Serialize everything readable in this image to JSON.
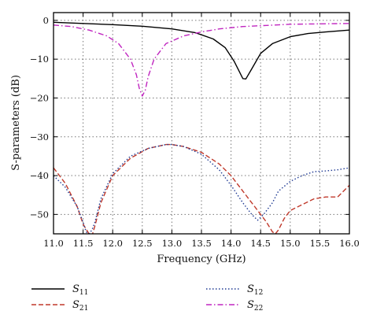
{
  "chart_data": {
    "type": "line",
    "title": "",
    "xlabel": "Frequency (GHz)",
    "ylabel": "S-parameters (dB)",
    "xlim": [
      11.0,
      16.0
    ],
    "ylim": [
      -55,
      2
    ],
    "xticks": [
      11.0,
      11.5,
      12.0,
      12.5,
      13.0,
      13.5,
      14.0,
      14.5,
      15.0,
      15.5,
      16.0
    ],
    "xtick_labels": [
      "11.0",
      "11.5",
      "12.0",
      "12.5",
      "13.0",
      "13.5",
      "14.0",
      "14.5",
      "15.0",
      "15.5",
      "16.0"
    ],
    "yticks": [
      0,
      -10,
      -20,
      -30,
      -40,
      -50
    ],
    "ytick_labels": [
      "0",
      "−10",
      "−20",
      "−30",
      "−40",
      "−50"
    ],
    "grid": true,
    "legend_position": "bottom",
    "series": [
      {
        "name": "S11",
        "sub": "11",
        "color": "#000000",
        "dash": "solid",
        "x": [
          11.0,
          11.5,
          12.0,
          12.5,
          13.0,
          13.4,
          13.7,
          13.9,
          14.05,
          14.15,
          14.2,
          14.25,
          14.35,
          14.5,
          14.7,
          15.0,
          15.3,
          15.6,
          16.0
        ],
        "y": [
          -0.5,
          -0.8,
          -1.1,
          -1.5,
          -2.2,
          -3.2,
          -4.8,
          -7.0,
          -10.5,
          -13.5,
          -15.0,
          -15.1,
          -12.5,
          -8.5,
          -6.0,
          -4.2,
          -3.4,
          -3.0,
          -2.5
        ]
      },
      {
        "name": "S21",
        "sub": "21",
        "color": "#c0392b",
        "dash": "dashed",
        "x": [
          11.0,
          11.2,
          11.4,
          11.5,
          11.6,
          11.65,
          11.7,
          11.8,
          12.0,
          12.3,
          12.6,
          12.9,
          13.0,
          13.2,
          13.5,
          13.8,
          14.0,
          14.2,
          14.4,
          14.6,
          14.7,
          14.75,
          14.8,
          14.9,
          15.0,
          15.2,
          15.4,
          15.6,
          15.8,
          16.0
        ],
        "y": [
          -38,
          -42,
          -48,
          -52.5,
          -55,
          -55.5,
          -53,
          -47,
          -40,
          -35.5,
          -33,
          -32,
          -32,
          -32.5,
          -34,
          -37,
          -40,
          -44,
          -48,
          -52,
          -54.5,
          -55,
          -54,
          -51,
          -49,
          -47.5,
          -46,
          -45.5,
          -45.5,
          -42.5
        ]
      },
      {
        "name": "S12",
        "sub": "12",
        "color": "#1f3a93",
        "dash": "dotted",
        "x": [
          11.0,
          11.2,
          11.4,
          11.5,
          11.55,
          11.6,
          11.65,
          11.7,
          11.8,
          12.0,
          12.3,
          12.6,
          12.9,
          13.0,
          13.2,
          13.5,
          13.8,
          14.0,
          14.2,
          14.35,
          14.45,
          14.55,
          14.7,
          14.8,
          15.0,
          15.2,
          15.4,
          15.6,
          15.8,
          16.0
        ],
        "y": [
          -40,
          -43,
          -48,
          -52,
          -54.5,
          -55,
          -54,
          -52,
          -46,
          -39.5,
          -35,
          -33,
          -32,
          -32,
          -32.5,
          -34.5,
          -38.5,
          -42.5,
          -47,
          -50,
          -51.5,
          -50,
          -47,
          -44,
          -41.5,
          -40,
          -39,
          -38.8,
          -38.5,
          -38
        ]
      },
      {
        "name": "S22",
        "sub": "22",
        "color": "#c026c0",
        "dash": "dashdot",
        "x": [
          11.0,
          11.3,
          11.6,
          11.9,
          12.1,
          12.3,
          12.4,
          12.45,
          12.5,
          12.55,
          12.6,
          12.7,
          12.9,
          13.2,
          13.5,
          13.8,
          14.2,
          14.6,
          15.0,
          15.5,
          16.0
        ],
        "y": [
          -1.2,
          -1.6,
          -2.5,
          -4.0,
          -6.0,
          -10.0,
          -14.0,
          -17.5,
          -19.5,
          -18.0,
          -14.5,
          -10.0,
          -6.0,
          -4.0,
          -3.0,
          -2.2,
          -1.6,
          -1.3,
          -1.0,
          -0.9,
          -0.8
        ]
      }
    ]
  }
}
